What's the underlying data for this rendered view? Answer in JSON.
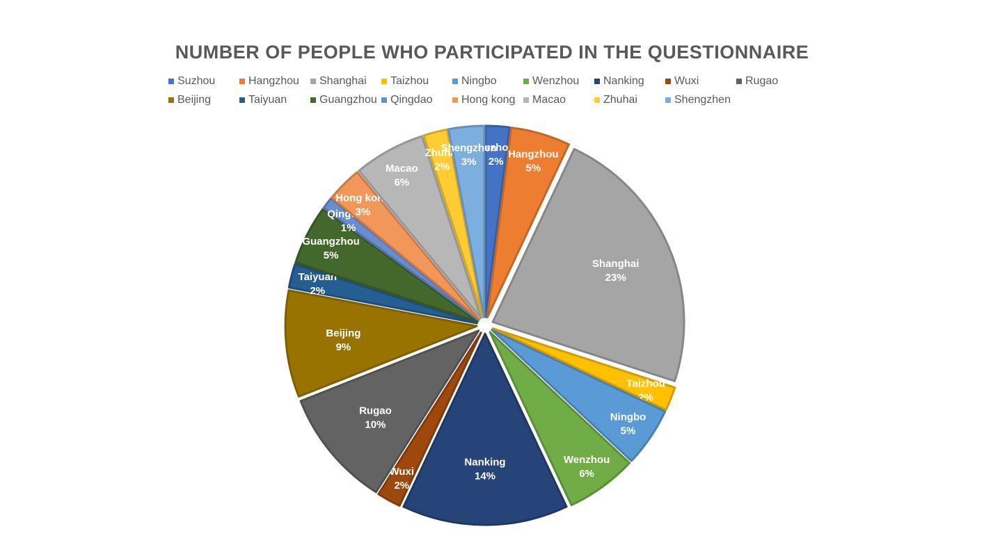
{
  "chart_data": {
    "type": "pie",
    "title": "NUMBER OF PEOPLE WHO PARTICIPATED IN THE QUESTIONNAIRE",
    "legend_position": "top",
    "slices": [
      {
        "name": "Suzhou",
        "value": 2,
        "label": "2%",
        "color": "#4472C4"
      },
      {
        "name": "Hangzhou",
        "value": 5,
        "label": "5%",
        "color": "#ED7D31"
      },
      {
        "name": "Shanghai",
        "value": 23,
        "label": "23%",
        "color": "#A5A5A5"
      },
      {
        "name": "Taizhou",
        "value": 2,
        "label": "2%",
        "color": "#FFC000"
      },
      {
        "name": "Ningbo",
        "value": 5,
        "label": "5%",
        "color": "#5B9BD5"
      },
      {
        "name": "Wenzhou",
        "value": 6,
        "label": "6%",
        "color": "#70AD47"
      },
      {
        "name": "Nanking",
        "value": 14,
        "label": "14%",
        "color": "#264478"
      },
      {
        "name": "Wuxi",
        "value": 2,
        "label": "2%",
        "color": "#9E480E"
      },
      {
        "name": "Rugao",
        "value": 10,
        "label": "10%",
        "color": "#636363"
      },
      {
        "name": "Beijing",
        "value": 9,
        "label": "9%",
        "color": "#997300"
      },
      {
        "name": "Taiyuan",
        "value": 2,
        "label": "2%",
        "color": "#255E91"
      },
      {
        "name": "Guangzhou",
        "value": 5,
        "label": "5%",
        "color": "#43682B"
      },
      {
        "name": "Qingdao",
        "value": 1,
        "label": "1%",
        "color": "#698ED0"
      },
      {
        "name": "Hong kong",
        "value": 3,
        "label": "3%",
        "color": "#F1975A"
      },
      {
        "name": "Macao",
        "value": 6,
        "label": "6%",
        "color": "#B7B7B7"
      },
      {
        "name": "Zhuhai",
        "value": 2,
        "label": "2%",
        "color": "#FFCD33"
      },
      {
        "name": "Shengzhen",
        "value": 3,
        "label": "3%",
        "color": "#7CAFDD"
      }
    ]
  }
}
